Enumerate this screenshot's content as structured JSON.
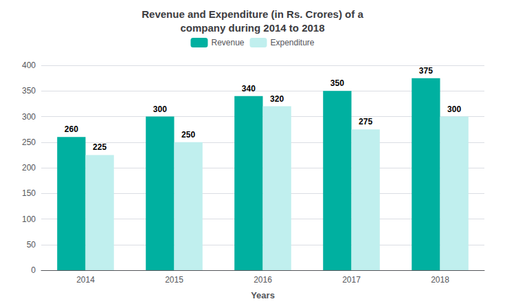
{
  "chart_data": {
    "type": "bar",
    "title": "Revenue and Expenditure (in Rs. Crores) of a\ncompany during 2014 to 2018",
    "xlabel": "Years",
    "categories": [
      "2014",
      "2015",
      "2016",
      "2017",
      "2018"
    ],
    "series": [
      {
        "name": "Revenue",
        "color": "#00B0A0",
        "values": [
          260,
          300,
          340,
          350,
          375
        ]
      },
      {
        "name": "Expenditure",
        "color": "#C0EFEE",
        "values": [
          225,
          250,
          320,
          275,
          300
        ]
      }
    ],
    "ylim": [
      0,
      400
    ],
    "yticks": [
      0,
      50,
      100,
      150,
      200,
      250,
      300,
      350,
      400
    ],
    "grid": true,
    "legend": "top",
    "data_labels": true
  }
}
